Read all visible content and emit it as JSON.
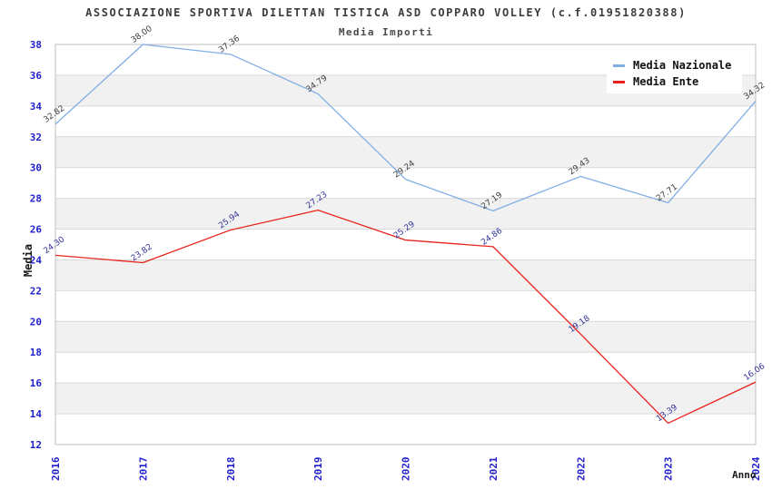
{
  "header": {
    "title": "ASSOCIAZIONE SPORTIVA DILETTAN TISTICA ASD COPPARO VOLLEY (c.f.01951820388)",
    "subtitle": "Media Importi"
  },
  "axes": {
    "y_label": "Media",
    "x_label": "Anno"
  },
  "legend": {
    "items": [
      {
        "label": "Media Nazionale",
        "color": "#7FAFE4"
      },
      {
        "label": "Media Ente",
        "color": "#E8231C"
      }
    ]
  },
  "colors": {
    "tick": "#1F1FCC",
    "band": "#F1F1F1",
    "grid": "#D9D9D9",
    "border": "#BFBFBF",
    "title": "#3C3C3C"
  },
  "chart_data": {
    "type": "line",
    "title": "ASSOCIAZIONE SPORTIVA DILETTAN TISTICA ASD COPPARO VOLLEY (c.f.01951820388)",
    "subtitle": "Media Importi",
    "xlabel": "Anno",
    "ylabel": "Media",
    "x": [
      "2016",
      "2017",
      "2018",
      "2019",
      "2020",
      "2021",
      "2022",
      "2023",
      "2024"
    ],
    "ylim": [
      12,
      38
    ],
    "y_tick_step": 2,
    "grid": "horizontal-striped-bands",
    "legend_position": "top-right",
    "series": [
      {
        "name": "Media Nazionale",
        "color": "#7FAFE4",
        "label_color": "#3C3C3C",
        "values": [
          32.82,
          38.0,
          37.36,
          34.79,
          29.24,
          27.19,
          29.43,
          27.71,
          34.32
        ]
      },
      {
        "name": "Media Ente",
        "color": "#E8231C",
        "label_color": "#33339B",
        "values": [
          24.3,
          23.82,
          25.94,
          27.23,
          25.29,
          24.86,
          19.18,
          13.39,
          16.06
        ]
      }
    ]
  }
}
